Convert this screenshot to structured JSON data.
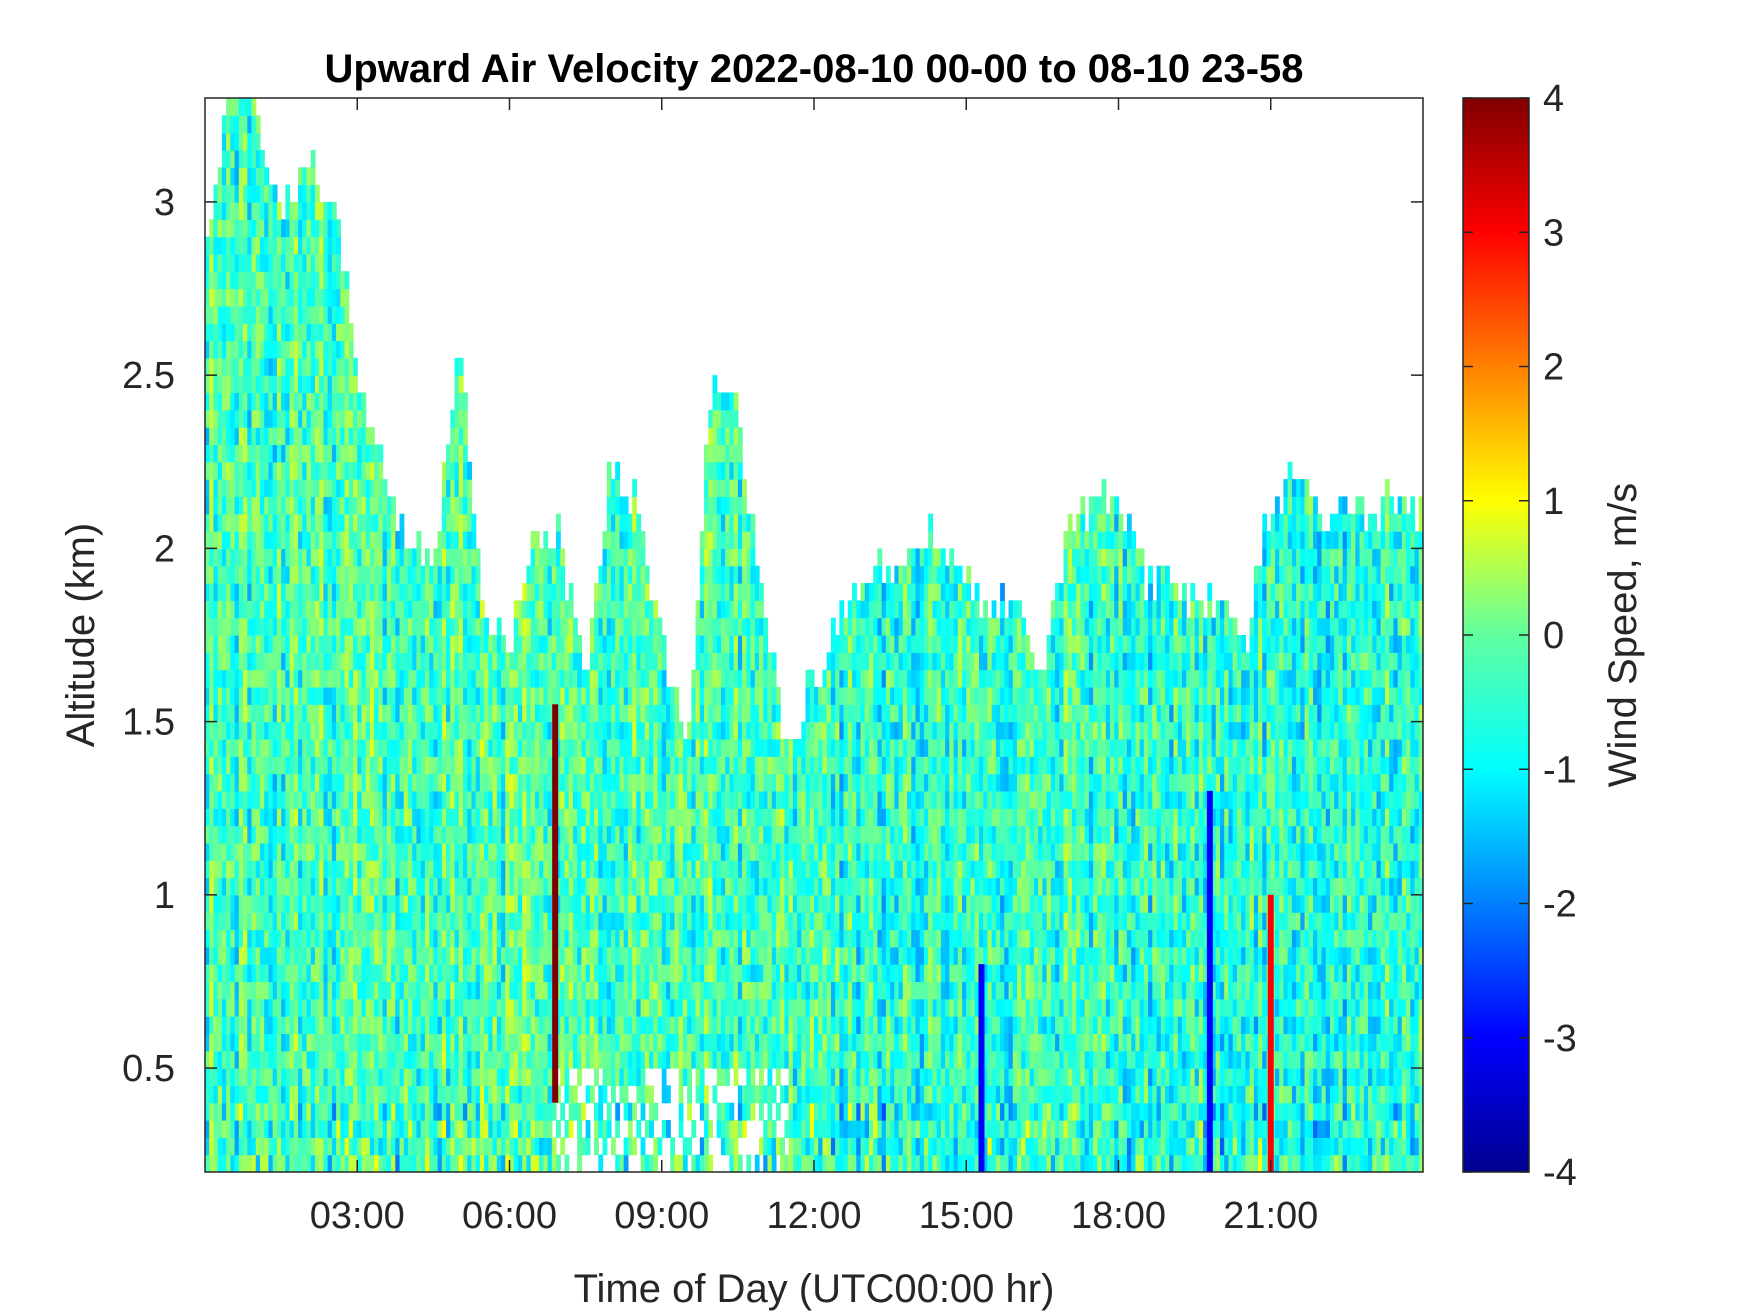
{
  "chart_data": {
    "type": "heatmap",
    "title": "Upward Air Velocity 2022-08-10 00-00 to 08-10 23-58",
    "xlabel": "Time of Day (UTC00:00 hr)",
    "ylabel": "Altitude (km)",
    "colorbar_label": "Wind Speed, m/s",
    "colormap": "jet",
    "x_unit": "hours",
    "xlim": [
      0,
      24
    ],
    "ylim": [
      0.2,
      3.3
    ],
    "clim": [
      -4,
      4
    ],
    "x_ticks": [
      3,
      6,
      9,
      12,
      15,
      18,
      21
    ],
    "x_tick_labels": [
      "03:00",
      "06:00",
      "09:00",
      "12:00",
      "15:00",
      "18:00",
      "21:00"
    ],
    "y_ticks": [
      0.5,
      1,
      1.5,
      2,
      2.5,
      3
    ],
    "y_tick_labels": [
      "0.5",
      "1",
      "1.5",
      "2",
      "2.5",
      "3"
    ],
    "colorbar_ticks": [
      4,
      3,
      2,
      1,
      0,
      -1,
      -2,
      -3,
      -4
    ],
    "colorbar_tick_labels": [
      "4",
      "3",
      "2",
      "1",
      "0",
      "-1",
      "-2",
      "-3",
      "-4"
    ],
    "data_top_altitude_km": {
      "hours": [
        0.0,
        0.5,
        1.0,
        1.5,
        2.0,
        2.5,
        3.0,
        3.5,
        4.0,
        4.5,
        5.0,
        5.5,
        6.0,
        6.5,
        7.0,
        7.5,
        8.0,
        8.5,
        9.0,
        9.5,
        10.0,
        10.5,
        11.0,
        11.5,
        12.0,
        12.5,
        13.0,
        13.5,
        14.0,
        14.5,
        15.0,
        15.5,
        16.0,
        16.5,
        17.0,
        17.5,
        18.0,
        18.5,
        19.0,
        19.5,
        20.0,
        20.5,
        21.0,
        21.5,
        22.0,
        22.5,
        23.0,
        24.0
      ],
      "top_km": [
        2.8,
        3.3,
        3.3,
        2.9,
        3.1,
        3.0,
        2.5,
        2.2,
        2.0,
        1.9,
        2.6,
        1.8,
        1.7,
        2.0,
        2.0,
        1.6,
        2.2,
        2.1,
        1.7,
        1.4,
        2.5,
        2.4,
        1.8,
        1.4,
        1.6,
        1.8,
        1.9,
        1.9,
        2.0,
        2.0,
        1.9,
        1.8,
        1.8,
        1.6,
        2.0,
        2.1,
        2.1,
        1.9,
        1.9,
        1.8,
        1.8,
        1.7,
        2.1,
        2.2,
        2.1,
        2.1,
        2.1,
        2.1
      ]
    },
    "notable_features": [
      {
        "hour": 6.9,
        "altitude_km": [
          0.4,
          1.55
        ],
        "speed_m_s": 4
      },
      {
        "hour": 21.0,
        "altitude_km": [
          0.2,
          1.0
        ],
        "speed_m_s": 3
      },
      {
        "hour": 19.8,
        "altitude_km": [
          0.2,
          1.3
        ],
        "speed_m_s": -3
      },
      {
        "hour": 15.3,
        "altitude_km": [
          0.2,
          0.8
        ],
        "speed_m_s": -3
      }
    ]
  }
}
